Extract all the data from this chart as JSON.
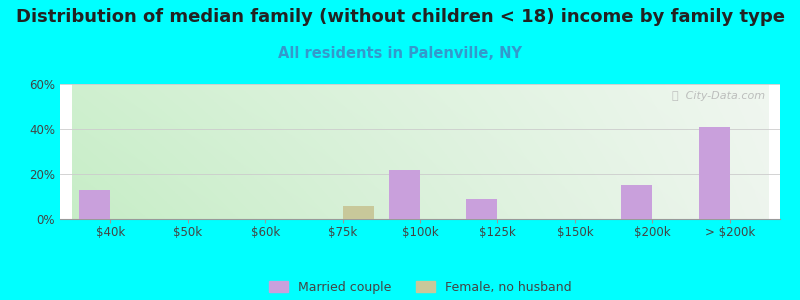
{
  "title": "Distribution of median family (without children < 18) income by family type",
  "subtitle": "All residents in Palenville, NY",
  "background_color": "#00FFFF",
  "categories": [
    "$40k",
    "$50k",
    "$60k",
    "$75k",
    "$100k",
    "$125k",
    "$150k",
    "$200k",
    "> $200k"
  ],
  "married_couple": [
    13,
    0,
    0,
    0,
    22,
    9,
    0,
    15,
    41
  ],
  "female_no_husband": [
    0,
    0,
    0,
    6,
    0,
    0,
    0,
    0,
    0
  ],
  "married_color": "#c9a0dc",
  "female_color": "#c8c89a",
  "ylim": [
    0,
    60
  ],
  "yticks": [
    0,
    20,
    40,
    60
  ],
  "ytick_labels": [
    "0%",
    "20%",
    "40%",
    "60%"
  ],
  "bar_width": 0.4,
  "title_fontsize": 13,
  "subtitle_fontsize": 10.5,
  "subtitle_color": "#3399cc",
  "title_color": "#222222",
  "axis_label_color": "#444444",
  "tick_label_fontsize": 8.5,
  "legend_label_married": "Married couple",
  "legend_label_female": "Female, no husband",
  "watermark": "ⓘ  City-Data.com"
}
